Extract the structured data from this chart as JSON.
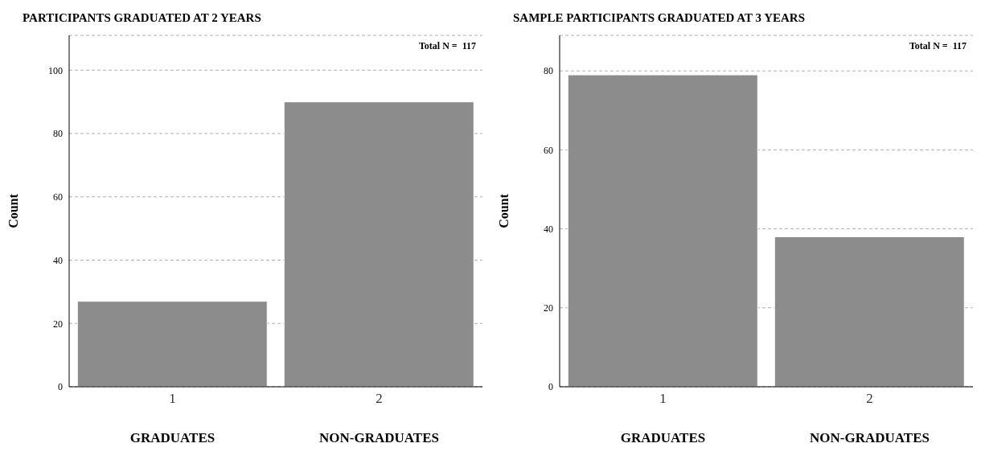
{
  "chart_data": [
    {
      "type": "bar",
      "title": "PARTICIPANTS GRADUATED AT 2 YEARS",
      "ylabel": "Count",
      "categories": [
        "1",
        "2"
      ],
      "values": [
        27,
        90
      ],
      "color": "#8c8c8c",
      "ylim": [
        0,
        111
      ],
      "yticks": [
        0,
        20,
        40,
        60,
        80,
        100
      ],
      "grid": "y",
      "legend": false,
      "annotations": [
        "Total N =  117",
        "GRADUATES",
        "NON-GRADUATES"
      ]
    },
    {
      "type": "bar",
      "title": "SAMPLE PARTICIPANTS GRADUATED AT 3 YEARS",
      "ylabel": "Count",
      "categories": [
        "1",
        "2"
      ],
      "values": [
        79,
        38
      ],
      "color": "#8c8c8c",
      "ylim": [
        0,
        89
      ],
      "yticks": [
        0,
        20,
        40,
        60,
        80
      ],
      "grid": "y",
      "legend": false,
      "annotations": [
        "Total N =  117",
        "GRADUATES",
        "NON-GRADUATES"
      ]
    }
  ]
}
